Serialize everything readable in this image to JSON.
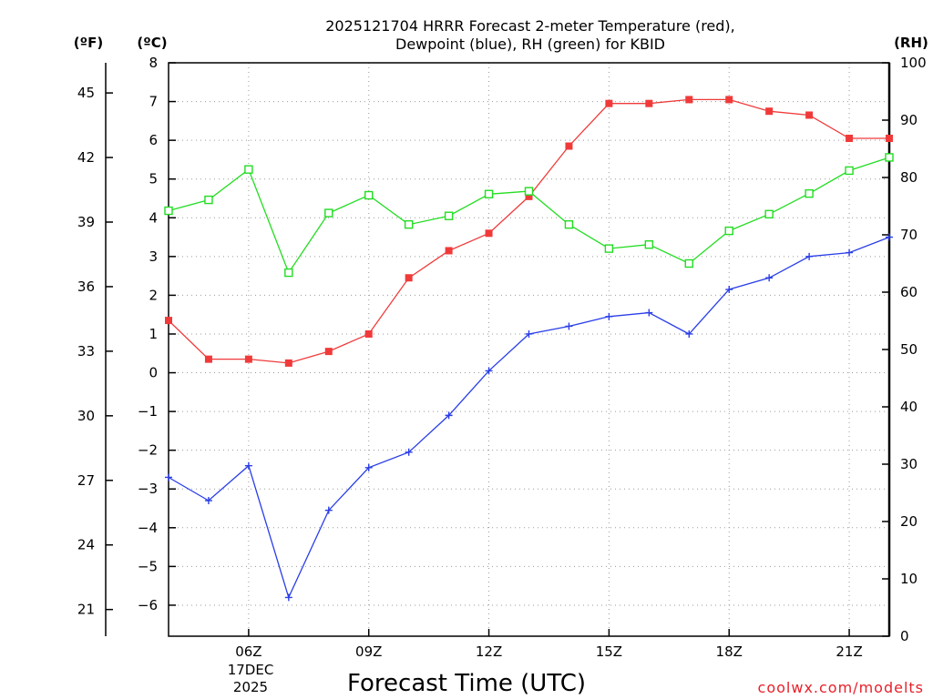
{
  "chart_data": {
    "type": "line",
    "title_lines": [
      "2025121704 HRRR Forecast 2-meter Temperature (red),",
      "Dewpoint (blue), RH (green) for KBID"
    ],
    "xlabel": "Forecast Time (UTC)",
    "x_hours": [
      4,
      5,
      6,
      7,
      8,
      9,
      10,
      11,
      12,
      13,
      14,
      15,
      16,
      17,
      18,
      19,
      20,
      21,
      22
    ],
    "x_range": [
      4,
      22
    ],
    "x_ticks": [
      {
        "hour": 6,
        "label": "06Z"
      },
      {
        "hour": 9,
        "label": "09Z"
      },
      {
        "hour": 12,
        "label": "12Z"
      },
      {
        "hour": 15,
        "label": "15Z"
      },
      {
        "hour": 18,
        "label": "18Z"
      },
      {
        "hour": 21,
        "label": "21Z"
      }
    ],
    "date_label_lines": [
      "17DEC",
      "2025"
    ],
    "date_label_hour": 6,
    "axes": {
      "celsius": {
        "unit_label": "(ºC)",
        "range": [
          -6.8,
          8
        ],
        "ticks": [
          8,
          7,
          6,
          5,
          4,
          3,
          2,
          1,
          0,
          -1,
          -2,
          -3,
          -4,
          -5,
          -6
        ],
        "tick_labels": [
          "8",
          "7",
          "6",
          "5",
          "4",
          "3",
          "2",
          "1",
          "0",
          "−1",
          "−2",
          "−3",
          "−4",
          "−5",
          "−6"
        ]
      },
      "fahrenheit": {
        "unit_label": "(ºF)",
        "ticks": [
          45,
          42,
          39,
          36,
          33,
          30,
          27,
          24,
          21
        ],
        "tick_labels": [
          "45",
          "42",
          "39",
          "36",
          "33",
          "30",
          "27",
          "24",
          "21"
        ]
      },
      "rh": {
        "unit_label": "(RH)",
        "range": [
          0,
          100
        ],
        "ticks": [
          100,
          90,
          80,
          70,
          60,
          50,
          40,
          30,
          20,
          10,
          0
        ],
        "tick_labels": [
          "100",
          "90",
          "80",
          "70",
          "60",
          "50",
          "40",
          "30",
          "20",
          "10",
          "0"
        ]
      }
    },
    "series": [
      {
        "name": "Temperature",
        "axis": "celsius",
        "color": "#f03a3a",
        "marker": "filled-square",
        "values": [
          1.35,
          0.35,
          0.35,
          0.25,
          0.55,
          1.0,
          2.45,
          3.15,
          3.6,
          4.55,
          5.85,
          6.95,
          6.95,
          7.05,
          7.05,
          6.75,
          6.65,
          6.05,
          6.05
        ]
      },
      {
        "name": "Dewpoint",
        "axis": "celsius",
        "color": "#2a3ee8",
        "marker": "plus",
        "values": [
          -2.7,
          -3.3,
          -2.4,
          -5.8,
          -3.55,
          -2.45,
          -2.05,
          -1.1,
          0.05,
          1.0,
          1.2,
          1.45,
          1.55,
          1.0,
          2.15,
          2.45,
          3.0,
          3.1,
          3.5
        ]
      },
      {
        "name": "RH",
        "axis": "rh",
        "color": "#22dd22",
        "marker": "open-square",
        "values": [
          74.2,
          76.1,
          81.4,
          63.4,
          73.8,
          76.9,
          71.8,
          73.3,
          77.1,
          77.6,
          71.8,
          67.6,
          68.3,
          65.0,
          70.7,
          73.6,
          77.2,
          81.2,
          83.5
        ]
      }
    ]
  },
  "watermark": "coolwx.com/modelts",
  "colors": {
    "axis": "#000000",
    "grid": "#9a9a9a",
    "background": "#ffffff"
  }
}
